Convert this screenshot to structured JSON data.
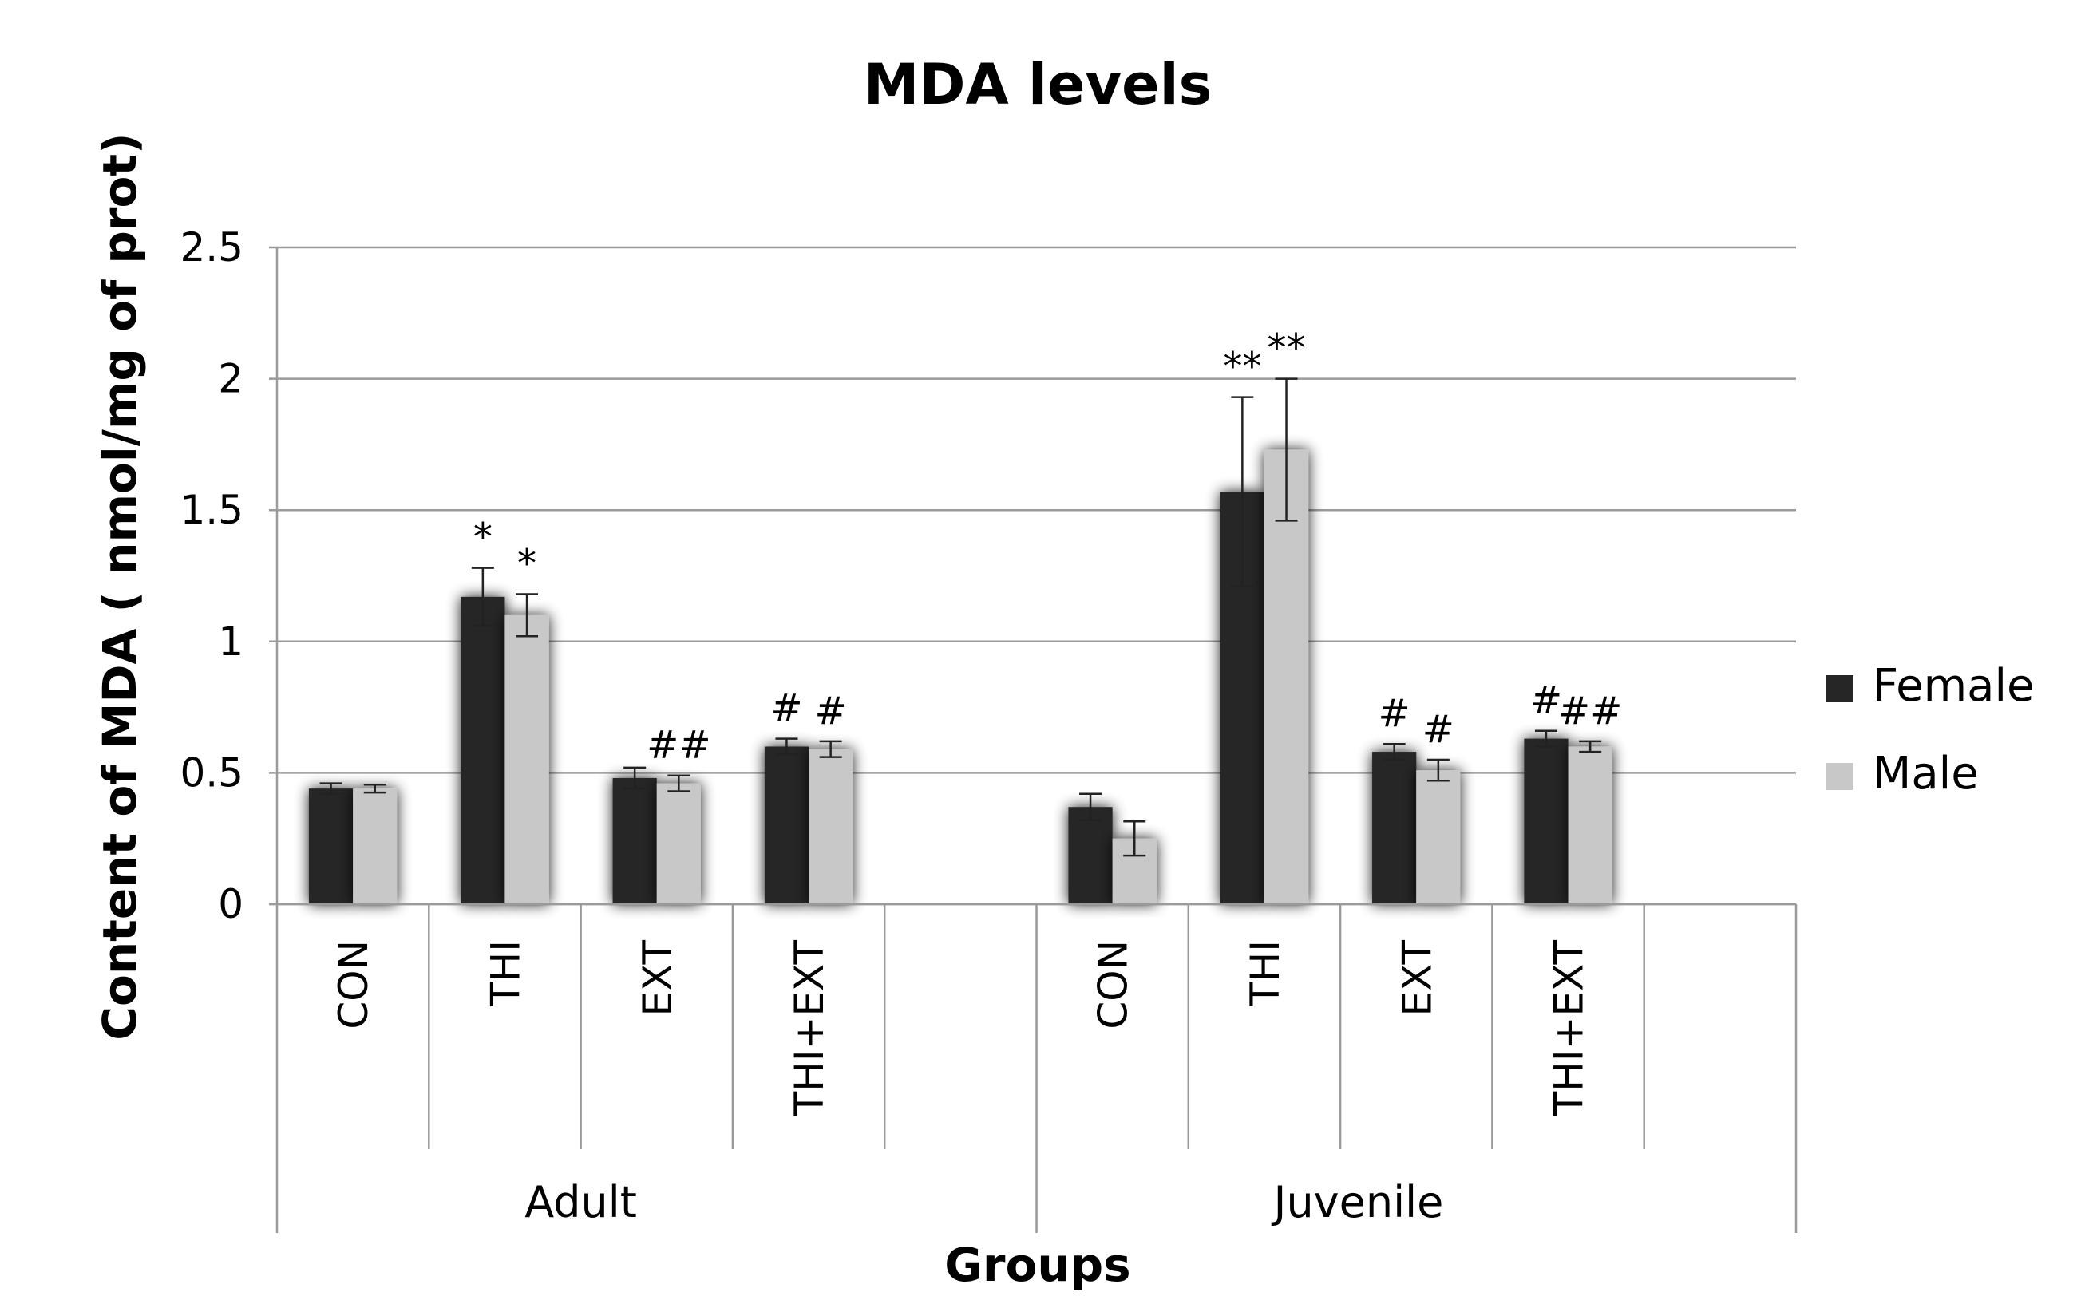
{
  "chart_data": {
    "type": "bar",
    "title": "MDA levels",
    "xlabel": "Groups",
    "ylabel": "Content of MDA ( nmol/mg of prot)",
    "ylim": [
      0,
      2.5
    ],
    "yticks": [
      "0",
      "0.5",
      "1",
      "1.5",
      "2",
      "2.5"
    ],
    "grid": true,
    "legend_position": "right",
    "groups": [
      {
        "label": "Adult",
        "categories": [
          "CON",
          "THI",
          "EXT",
          "THI+EXT"
        ]
      },
      {
        "label": "Juvenile",
        "categories": [
          "CON",
          "THI",
          "EXT",
          "THI+EXT"
        ]
      }
    ],
    "series": [
      {
        "name": "Female",
        "color": "#262626",
        "values": [
          0.44,
          1.17,
          0.48,
          0.6,
          0.37,
          1.57,
          0.58,
          0.63
        ],
        "errors": [
          0.02,
          0.11,
          0.04,
          0.03,
          0.05,
          0.36,
          0.03,
          0.03
        ],
        "annotations": [
          "",
          "*",
          "",
          "#",
          "",
          "**",
          "#",
          "#"
        ]
      },
      {
        "name": "Male",
        "color": "#c8c8c8",
        "values": [
          0.44,
          1.1,
          0.46,
          0.59,
          0.25,
          1.73,
          0.51,
          0.6
        ],
        "errors": [
          0.015,
          0.08,
          0.03,
          0.03,
          0.065,
          0.27,
          0.04,
          0.02
        ],
        "annotations": [
          "",
          "*",
          "##",
          "#",
          "",
          "**",
          "#",
          "##"
        ]
      }
    ]
  }
}
